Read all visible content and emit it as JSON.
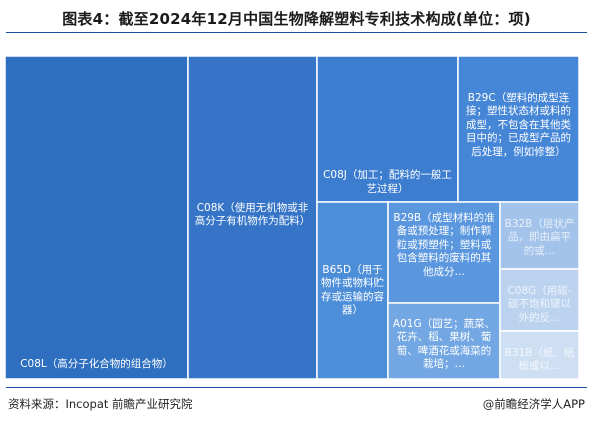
{
  "title": "图表4：截至2024年12月中国生物降解塑料专利技术构成(单位：项)",
  "source": "资料来源：Incopat 前瞻产业研究院",
  "brand": "@前瞻经济学人APP",
  "chart_data": {
    "type": "treemap",
    "title": "图表4：截至2024年12月中国生物降解塑料专利技术构成(单位：项)",
    "items": [
      {
        "label": "C08L（高分子化合物的组合物）",
        "value": 100,
        "color": "#2e6fc0"
      },
      {
        "label": "C08K（使用无机物或非高分子有机物作为配料）",
        "value": 75,
        "color": "#3574c6"
      },
      {
        "label": "C08J（加工；配料的一般工艺过程）",
        "value": 34,
        "color": "#3d7dd0"
      },
      {
        "label": "B29C（塑料的成型连接；塑性状态材或料的成型，不包含在其他类目中的；已成型产品的后处理，例如修整）",
        "value": 33,
        "color": "#4686d6"
      },
      {
        "label": "B65D（用于物件或物料贮存或运输的容器）",
        "value": 19,
        "color": "#4d8ed9"
      },
      {
        "label": "B29B（成型材料的准备或预处理；制作颗粒或预塑件；塑料或包含塑料的废料的其他成分…",
        "value": 18,
        "color": "#5b97de"
      },
      {
        "label": "A01G（园艺；蔬菜、花卉、稻、果树、葡萄、啤酒花或海菜的栽培；…",
        "value": 17,
        "color": "#73a7e3"
      },
      {
        "label": "B32B（层状产品，即由扁平的或…",
        "value": 6,
        "color": "#a3c3ea"
      },
      {
        "label": "C08G（用碳-碳不饱和键以外的反…",
        "value": 5,
        "color": "#bcd3ef"
      },
      {
        "label": "B31B（纸、纸板或以…",
        "value": 4,
        "color": "#cfdff3"
      }
    ]
  }
}
